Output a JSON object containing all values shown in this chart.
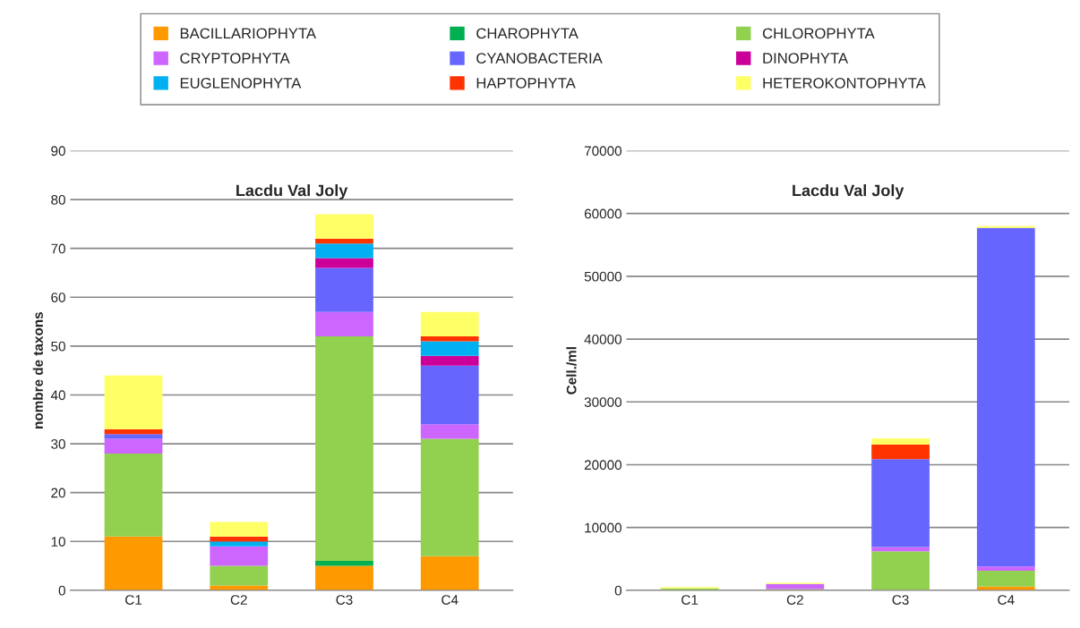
{
  "chart_data": [
    {
      "type": "bar",
      "stacked": true,
      "title": "Lacdu Val Joly",
      "ylabel": "nombre de taxons",
      "categories": [
        "C1",
        "C2",
        "C3",
        "C4"
      ],
      "ylim": [
        0,
        90
      ],
      "yticks": [
        0,
        10,
        20,
        30,
        40,
        50,
        60,
        70,
        80,
        90
      ],
      "grid": "y",
      "legend": "top",
      "series": [
        {
          "name": "BACILLARIOPHYTA",
          "color": "#ff9900",
          "values": [
            11,
            1,
            5,
            7
          ]
        },
        {
          "name": "CHAROPHYTA",
          "color": "#00b050",
          "values": [
            0,
            0,
            1,
            0
          ]
        },
        {
          "name": "CHLOROPHYTA",
          "color": "#92d050",
          "values": [
            17,
            4,
            46,
            24
          ]
        },
        {
          "name": "CRYPTOPHYTA",
          "color": "#cc66ff",
          "values": [
            3,
            4,
            5,
            3
          ]
        },
        {
          "name": "CYANOBACTERIA",
          "color": "#6666ff",
          "values": [
            1,
            0,
            9,
            12
          ]
        },
        {
          "name": "DINOPHYTA",
          "color": "#cc0099",
          "values": [
            0,
            0,
            2,
            2
          ]
        },
        {
          "name": "EUGLENOPHYTA",
          "color": "#00b0f0",
          "values": [
            0,
            1,
            3,
            3
          ]
        },
        {
          "name": "HAPTOPHYTA",
          "color": "#ff3300",
          "values": [
            1,
            1,
            1,
            1
          ]
        },
        {
          "name": "HETEROKONTOPHYTA",
          "color": "#ffff66",
          "values": [
            11,
            3,
            5,
            5
          ]
        }
      ]
    },
    {
      "type": "bar",
      "stacked": true,
      "title": "Lacdu Val Joly",
      "ylabel": "Cell./ml",
      "categories": [
        "C1",
        "C2",
        "C3",
        "C4"
      ],
      "ylim": [
        0,
        70000
      ],
      "yticks": [
        0,
        10000,
        20000,
        30000,
        40000,
        50000,
        60000,
        70000
      ],
      "grid": "y",
      "series": [
        {
          "color": "#ff9900",
          "values": [
            null,
            100,
            null,
            600
          ]
        },
        {
          "color": "#00b050",
          "values": [
            0,
            0,
            0,
            0
          ]
        },
        {
          "color": "#92d050",
          "values": [
            300,
            100,
            6200,
            2500
          ]
        },
        {
          "color": "#cc66ff",
          "values": [
            0,
            800,
            700,
            700
          ]
        },
        {
          "color": "#6666ff",
          "values": [
            0,
            0,
            14000,
            53900
          ]
        },
        {
          "color": "#cc0099",
          "values": [
            0,
            0,
            0,
            0
          ]
        },
        {
          "color": "#00b0f0",
          "values": [
            0,
            0,
            0,
            0
          ]
        },
        {
          "color": "#ff3300",
          "values": [
            0,
            0,
            2300,
            0
          ]
        },
        {
          "color": "#ffff66",
          "values": [
            200,
            200,
            1000,
            300
          ]
        }
      ]
    }
  ]
}
